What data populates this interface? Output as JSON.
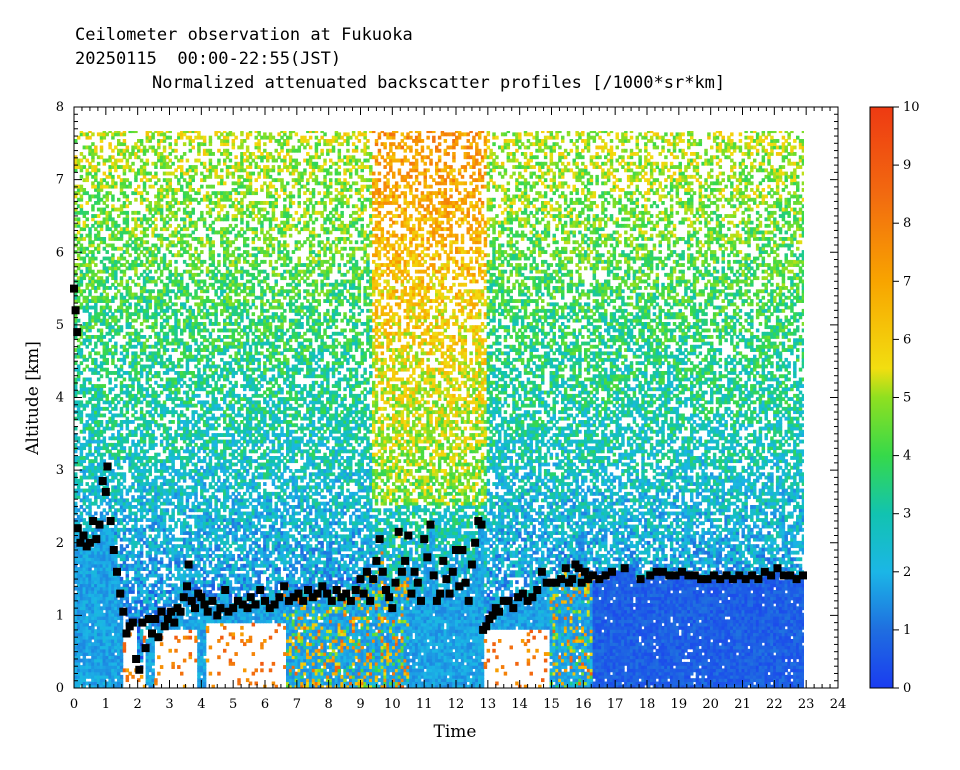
{
  "header": {
    "line1": "Ceilometer observation at Fukuoka",
    "line2": "20250115  00:00-22:55(JST)",
    "line3": "Normalized attenuated backscatter profiles [/1000*sr*km]"
  },
  "chart_data": {
    "type": "heatmap",
    "xlabel": "Time",
    "ylabel": "Altitude [km]",
    "xlim": [
      0,
      24
    ],
    "ylim": [
      0,
      8
    ],
    "x_ticks": [
      "0",
      "1",
      "2",
      "3",
      "4",
      "5",
      "6",
      "7",
      "8",
      "9",
      "10",
      "11",
      "12",
      "13",
      "14",
      "15",
      "16",
      "17",
      "18",
      "19",
      "20",
      "21",
      "22",
      "23",
      "24"
    ],
    "y_ticks": [
      "0",
      "1",
      "2",
      "3",
      "4",
      "5",
      "6",
      "7",
      "8"
    ],
    "data_extent": {
      "x": [
        0,
        22.92
      ],
      "y": [
        0,
        7.67
      ]
    },
    "colorbar": {
      "range": [
        0,
        10
      ],
      "ticks": [
        "0",
        "1",
        "2",
        "3",
        "4",
        "5",
        "6",
        "7",
        "8",
        "9",
        "10"
      ],
      "stops": [
        {
          "value": 0,
          "color": "#1a3cf0"
        },
        {
          "value": 1,
          "color": "#1f6ee0"
        },
        {
          "value": 2,
          "color": "#1bb6e6"
        },
        {
          "value": 3,
          "color": "#12c3b0"
        },
        {
          "value": 4,
          "color": "#36d94a"
        },
        {
          "value": 5,
          "color": "#8fe020"
        },
        {
          "value": 5.5,
          "color": "#f2de10"
        },
        {
          "value": 7,
          "color": "#f8a400"
        },
        {
          "value": 8.5,
          "color": "#f26a10"
        },
        {
          "value": 10,
          "color": "#ee3a12"
        }
      ]
    },
    "series": [
      {
        "type": "scatter",
        "marker": "square",
        "color": "#000000",
        "points": [
          [
            0.0,
            5.5
          ],
          [
            0.05,
            5.2
          ],
          [
            0.1,
            4.9
          ],
          [
            0.12,
            2.2
          ],
          [
            0.2,
            2.0
          ],
          [
            0.3,
            2.1
          ],
          [
            0.4,
            1.95
          ],
          [
            0.5,
            2.0
          ],
          [
            0.6,
            2.3
          ],
          [
            0.7,
            2.05
          ],
          [
            0.8,
            2.25
          ],
          [
            0.9,
            2.85
          ],
          [
            1.0,
            2.7
          ],
          [
            1.05,
            3.05
          ],
          [
            1.15,
            2.3
          ],
          [
            1.25,
            1.9
          ],
          [
            1.35,
            1.6
          ],
          [
            1.45,
            1.3
          ],
          [
            1.55,
            1.05
          ],
          [
            1.65,
            0.75
          ],
          [
            1.75,
            0.85
          ],
          [
            1.85,
            0.9
          ],
          [
            1.95,
            0.4
          ],
          [
            2.05,
            0.25
          ],
          [
            2.15,
            0.9
          ],
          [
            2.25,
            0.55
          ],
          [
            2.35,
            0.95
          ],
          [
            2.45,
            0.75
          ],
          [
            2.55,
            0.95
          ],
          [
            2.65,
            0.7
          ],
          [
            2.75,
            1.05
          ],
          [
            2.85,
            0.85
          ],
          [
            2.95,
            0.95
          ],
          [
            3.05,
            1.05
          ],
          [
            3.15,
            0.9
          ],
          [
            3.25,
            1.1
          ],
          [
            3.35,
            1.05
          ],
          [
            3.45,
            1.25
          ],
          [
            3.55,
            1.4
          ],
          [
            3.6,
            1.7
          ],
          [
            3.7,
            1.2
          ],
          [
            3.8,
            1.1
          ],
          [
            3.9,
            1.3
          ],
          [
            4.0,
            1.25
          ],
          [
            4.1,
            1.15
          ],
          [
            4.2,
            1.05
          ],
          [
            4.35,
            1.2
          ],
          [
            4.5,
            1.0
          ],
          [
            4.6,
            1.1
          ],
          [
            4.75,
            1.35
          ],
          [
            4.85,
            1.05
          ],
          [
            5.0,
            1.1
          ],
          [
            5.15,
            1.2
          ],
          [
            5.3,
            1.15
          ],
          [
            5.45,
            1.1
          ],
          [
            5.55,
            1.25
          ],
          [
            5.7,
            1.15
          ],
          [
            5.85,
            1.35
          ],
          [
            6.0,
            1.2
          ],
          [
            6.15,
            1.1
          ],
          [
            6.3,
            1.15
          ],
          [
            6.45,
            1.25
          ],
          [
            6.6,
            1.4
          ],
          [
            6.75,
            1.2
          ],
          [
            6.9,
            1.25
          ],
          [
            7.05,
            1.3
          ],
          [
            7.2,
            1.2
          ],
          [
            7.35,
            1.35
          ],
          [
            7.5,
            1.25
          ],
          [
            7.65,
            1.3
          ],
          [
            7.8,
            1.4
          ],
          [
            7.95,
            1.3
          ],
          [
            8.1,
            1.2
          ],
          [
            8.25,
            1.35
          ],
          [
            8.4,
            1.25
          ],
          [
            8.55,
            1.3
          ],
          [
            8.7,
            1.2
          ],
          [
            8.85,
            1.35
          ],
          [
            9.0,
            1.5
          ],
          [
            9.1,
            1.3
          ],
          [
            9.2,
            1.6
          ],
          [
            9.3,
            1.2
          ],
          [
            9.4,
            1.5
          ],
          [
            9.5,
            1.75
          ],
          [
            9.6,
            2.05
          ],
          [
            9.7,
            1.6
          ],
          [
            9.8,
            1.35
          ],
          [
            9.9,
            1.25
          ],
          [
            10.0,
            1.1
          ],
          [
            10.1,
            1.45
          ],
          [
            10.2,
            2.15
          ],
          [
            10.3,
            1.6
          ],
          [
            10.4,
            1.75
          ],
          [
            10.5,
            2.1
          ],
          [
            10.6,
            1.3
          ],
          [
            10.7,
            1.6
          ],
          [
            10.8,
            1.45
          ],
          [
            10.9,
            1.2
          ],
          [
            11.0,
            2.05
          ],
          [
            11.1,
            1.8
          ],
          [
            11.2,
            2.25
          ],
          [
            11.3,
            1.55
          ],
          [
            11.4,
            1.2
          ],
          [
            11.5,
            1.3
          ],
          [
            11.6,
            1.75
          ],
          [
            11.7,
            1.5
          ],
          [
            11.8,
            1.3
          ],
          [
            11.9,
            1.6
          ],
          [
            12.0,
            1.9
          ],
          [
            12.1,
            1.4
          ],
          [
            12.2,
            1.9
          ],
          [
            12.3,
            1.45
          ],
          [
            12.4,
            1.2
          ],
          [
            12.5,
            1.7
          ],
          [
            12.6,
            2.0
          ],
          [
            12.7,
            2.3
          ],
          [
            12.8,
            2.25
          ],
          [
            12.85,
            0.8
          ],
          [
            12.95,
            0.85
          ],
          [
            13.05,
            0.95
          ],
          [
            13.15,
            1.0
          ],
          [
            13.25,
            1.1
          ],
          [
            13.35,
            1.05
          ],
          [
            13.5,
            1.2
          ],
          [
            13.65,
            1.2
          ],
          [
            13.8,
            1.1
          ],
          [
            13.95,
            1.25
          ],
          [
            14.1,
            1.3
          ],
          [
            14.25,
            1.2
          ],
          [
            14.4,
            1.25
          ],
          [
            14.55,
            1.35
          ],
          [
            14.7,
            1.6
          ],
          [
            14.85,
            1.45
          ],
          [
            15.0,
            1.45
          ],
          [
            15.15,
            1.45
          ],
          [
            15.3,
            1.5
          ],
          [
            15.45,
            1.65
          ],
          [
            15.55,
            1.45
          ],
          [
            15.65,
            1.5
          ],
          [
            15.75,
            1.7
          ],
          [
            15.85,
            1.65
          ],
          [
            15.95,
            1.45
          ],
          [
            16.05,
            1.6
          ],
          [
            16.15,
            1.5
          ],
          [
            16.3,
            1.55
          ],
          [
            16.5,
            1.5
          ],
          [
            16.7,
            1.55
          ],
          [
            16.9,
            1.6
          ],
          [
            17.3,
            1.65
          ],
          [
            17.8,
            1.5
          ],
          [
            18.1,
            1.55
          ],
          [
            18.3,
            1.6
          ],
          [
            18.5,
            1.6
          ],
          [
            18.7,
            1.55
          ],
          [
            18.9,
            1.55
          ],
          [
            19.1,
            1.6
          ],
          [
            19.3,
            1.55
          ],
          [
            19.5,
            1.55
          ],
          [
            19.7,
            1.5
          ],
          [
            19.9,
            1.5
          ],
          [
            20.1,
            1.55
          ],
          [
            20.3,
            1.5
          ],
          [
            20.5,
            1.55
          ],
          [
            20.7,
            1.5
          ],
          [
            20.9,
            1.55
          ],
          [
            21.1,
            1.5
          ],
          [
            21.3,
            1.55
          ],
          [
            21.5,
            1.5
          ],
          [
            21.7,
            1.6
          ],
          [
            21.9,
            1.55
          ],
          [
            22.1,
            1.65
          ],
          [
            22.3,
            1.55
          ],
          [
            22.5,
            1.55
          ],
          [
            22.7,
            1.5
          ],
          [
            22.9,
            1.55
          ]
        ]
      }
    ]
  }
}
